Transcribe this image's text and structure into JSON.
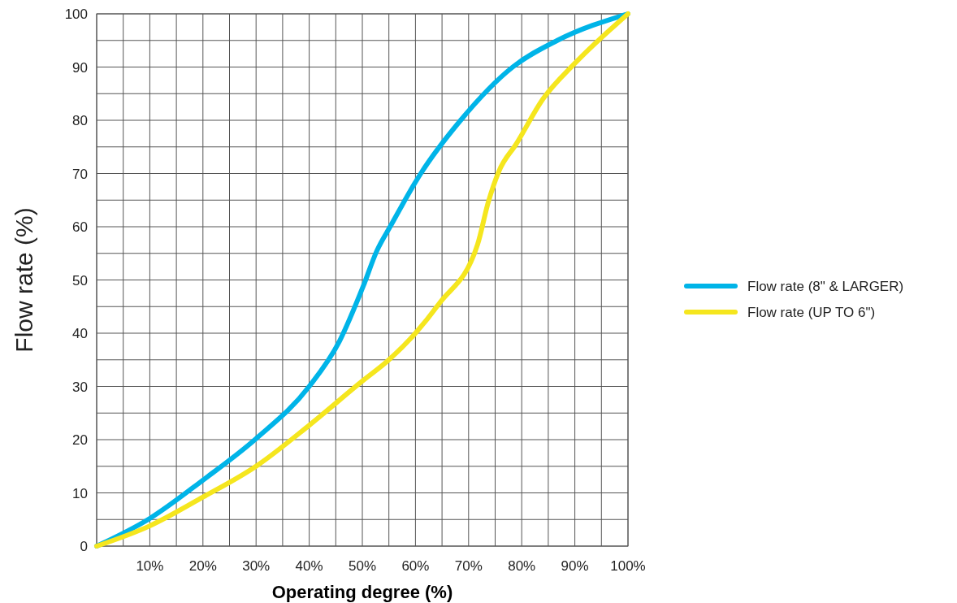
{
  "chart_data": {
    "type": "line",
    "xlabel": "Operating degree (%)",
    "ylabel": "Flow rate (%)",
    "xlim": [
      0,
      100
    ],
    "ylim": [
      0,
      100
    ],
    "xticks": [
      {
        "value": 0,
        "label": null
      },
      {
        "value": 5,
        "label": null
      },
      {
        "value": 10,
        "label": "10%"
      },
      {
        "value": 15,
        "label": null
      },
      {
        "value": 20,
        "label": "20%"
      },
      {
        "value": 25,
        "label": null
      },
      {
        "value": 30,
        "label": "30%"
      },
      {
        "value": 35,
        "label": null
      },
      {
        "value": 40,
        "label": "40%"
      },
      {
        "value": 45,
        "label": null
      },
      {
        "value": 50,
        "label": "50%"
      },
      {
        "value": 55,
        "label": null
      },
      {
        "value": 60,
        "label": "60%"
      },
      {
        "value": 65,
        "label": null
      },
      {
        "value": 70,
        "label": "70%"
      },
      {
        "value": 75,
        "label": null
      },
      {
        "value": 80,
        "label": "80%"
      },
      {
        "value": 85,
        "label": null
      },
      {
        "value": 90,
        "label": "90%"
      },
      {
        "value": 95,
        "label": null
      },
      {
        "value": 100,
        "label": "100%"
      }
    ],
    "yticks": [
      0,
      {
        "value": 5,
        "label": null
      },
      10,
      {
        "value": 15,
        "label": null
      },
      20,
      {
        "value": 25,
        "label": null
      },
      30,
      {
        "value": 35,
        "label": null
      },
      40,
      {
        "value": 45,
        "label": null
      },
      50,
      {
        "value": 55,
        "label": null
      },
      60,
      {
        "value": 65,
        "label": null
      },
      70,
      {
        "value": 75,
        "label": null
      },
      80,
      {
        "value": 85,
        "label": null
      },
      90,
      {
        "value": 95,
        "label": null
      },
      100
    ],
    "grid": true,
    "legend": "right",
    "marker": "none",
    "line_style": "solid",
    "series": [
      {
        "name": "Flow rate (8\" & LARGER)",
        "color": "#00b4e8",
        "x": [
          0,
          10,
          20,
          30,
          40,
          45.7,
          50.2,
          52.7,
          55.4,
          61,
          68.5,
          78.3,
          86.7,
          100
        ],
        "values": [
          0,
          5.2,
          12.4,
          20.2,
          30,
          38.5,
          48.9,
          55.4,
          60.3,
          70,
          80,
          90,
          95,
          100
        ]
      },
      {
        "name": "Flow rate (UP TO 6\")",
        "color": "#f5e61e",
        "x": [
          0,
          10,
          20,
          30,
          40,
          50,
          55,
          60,
          64.5,
          71.7,
          73.7,
          75.7,
          79,
          84,
          90,
          100
        ],
        "values": [
          0,
          3.8,
          9.2,
          15,
          22.7,
          31,
          35,
          40,
          45.6,
          56.7,
          64.6,
          70.4,
          75.6,
          84,
          90.7,
          100
        ]
      }
    ]
  }
}
